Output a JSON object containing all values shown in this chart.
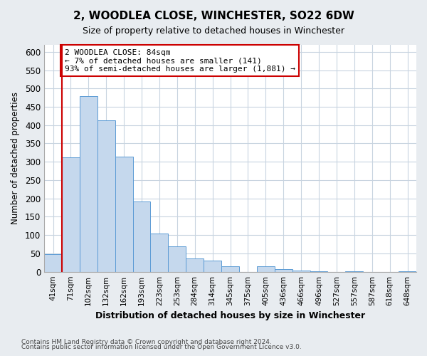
{
  "title": "2, WOODLEA CLOSE, WINCHESTER, SO22 6DW",
  "subtitle": "Size of property relative to detached houses in Winchester",
  "xlabel": "Distribution of detached houses by size in Winchester",
  "ylabel": "Number of detached properties",
  "bin_labels": [
    "41sqm",
    "71sqm",
    "102sqm",
    "132sqm",
    "162sqm",
    "193sqm",
    "223sqm",
    "253sqm",
    "284sqm",
    "314sqm",
    "345sqm",
    "375sqm",
    "405sqm",
    "436sqm",
    "466sqm",
    "496sqm",
    "527sqm",
    "557sqm",
    "587sqm",
    "618sqm",
    "648sqm"
  ],
  "bar_heights": [
    47,
    312,
    480,
    414,
    314,
    192,
    105,
    69,
    36,
    30,
    14,
    0,
    14,
    8,
    3,
    2,
    0,
    1,
    0,
    0,
    1
  ],
  "bar_color": "#c5d8ed",
  "bar_edge_color": "#5b9bd5",
  "vline_x_index": 1,
  "vline_color": "#cc0000",
  "annotation_text": "2 WOODLEA CLOSE: 84sqm\n← 7% of detached houses are smaller (141)\n93% of semi-detached houses are larger (1,881) →",
  "annotation_box_color": "#ffffff",
  "annotation_box_edge_color": "#cc0000",
  "ylim": [
    0,
    620
  ],
  "yticks": [
    0,
    50,
    100,
    150,
    200,
    250,
    300,
    350,
    400,
    450,
    500,
    550,
    600
  ],
  "footnote1": "Contains HM Land Registry data © Crown copyright and database right 2024.",
  "footnote2": "Contains public sector information licensed under the Open Government Licence v3.0.",
  "bg_color": "#e8ecf0",
  "plot_bg_color": "#ffffff",
  "grid_color": "#c8d4e0"
}
